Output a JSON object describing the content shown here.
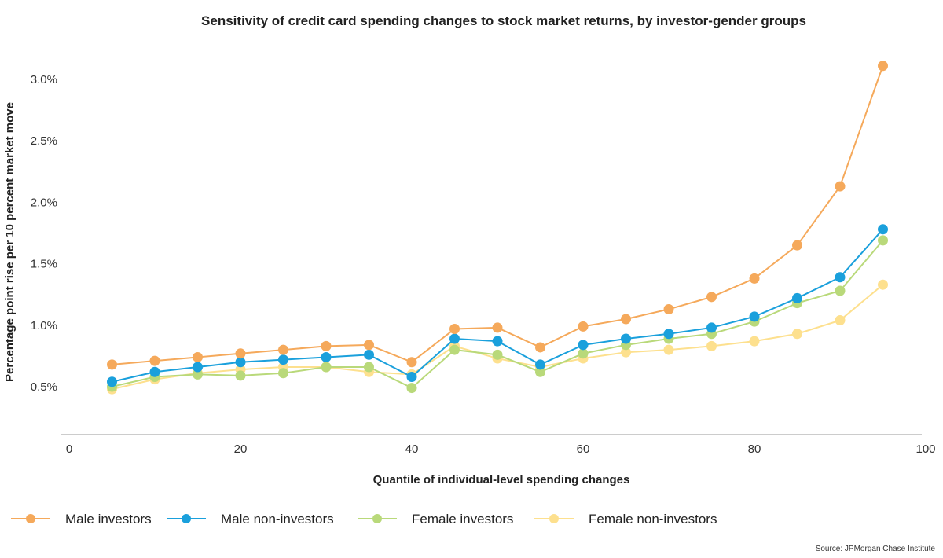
{
  "chart_data": {
    "type": "line",
    "title": "Sensitivity of credit card spending changes to stock market returns, by investor-gender groups",
    "xlabel": "Quantile of individual-level spending changes",
    "ylabel": "Percentage point rise per 10 percent market move",
    "xlim": [
      0,
      100
    ],
    "ylim": [
      0.2,
      3.2
    ],
    "x_ticks": [
      0,
      20,
      40,
      60,
      80,
      100
    ],
    "x_tick_labels": [
      "0",
      "20",
      "40",
      "60",
      "80",
      "100"
    ],
    "y_ticks": [
      0.5,
      1.0,
      1.5,
      2.0,
      2.5,
      3.0
    ],
    "y_tick_labels": [
      "0.5%",
      "1.0%",
      "1.5%",
      "2.0%",
      "2.5%",
      "3.0%"
    ],
    "grid": false,
    "legend_position": "bottom",
    "x": [
      5,
      10,
      15,
      20,
      25,
      30,
      35,
      40,
      45,
      50,
      55,
      60,
      65,
      70,
      75,
      80,
      85,
      90,
      95
    ],
    "series": [
      {
        "name": "Male investors",
        "color": "#f5a95b",
        "values": [
          0.68,
          0.71,
          0.74,
          0.77,
          0.8,
          0.83,
          0.84,
          0.7,
          0.97,
          0.98,
          0.82,
          0.99,
          1.05,
          1.13,
          1.23,
          1.38,
          1.65,
          2.13,
          3.11
        ]
      },
      {
        "name": "Male non-investors",
        "color": "#1aa0dc",
        "values": [
          0.54,
          0.62,
          0.66,
          0.7,
          0.72,
          0.74,
          0.76,
          0.58,
          0.89,
          0.87,
          0.68,
          0.84,
          0.89,
          0.93,
          0.98,
          1.07,
          1.22,
          1.39,
          1.78
        ]
      },
      {
        "name": "Female investors",
        "color": "#b9d97a",
        "values": [
          0.5,
          0.58,
          0.6,
          0.59,
          0.61,
          0.66,
          0.66,
          0.49,
          0.8,
          0.76,
          0.62,
          0.77,
          0.84,
          0.89,
          0.93,
          1.03,
          1.18,
          1.28,
          1.69
        ]
      },
      {
        "name": "Female non-investors",
        "color": "#fde08e",
        "values": [
          0.48,
          0.56,
          0.61,
          0.64,
          0.66,
          0.66,
          0.62,
          0.6,
          0.83,
          0.73,
          0.66,
          0.73,
          0.78,
          0.8,
          0.83,
          0.87,
          0.93,
          1.04,
          1.33
        ]
      }
    ],
    "source": "Source: JPMorgan Chase Institute"
  }
}
